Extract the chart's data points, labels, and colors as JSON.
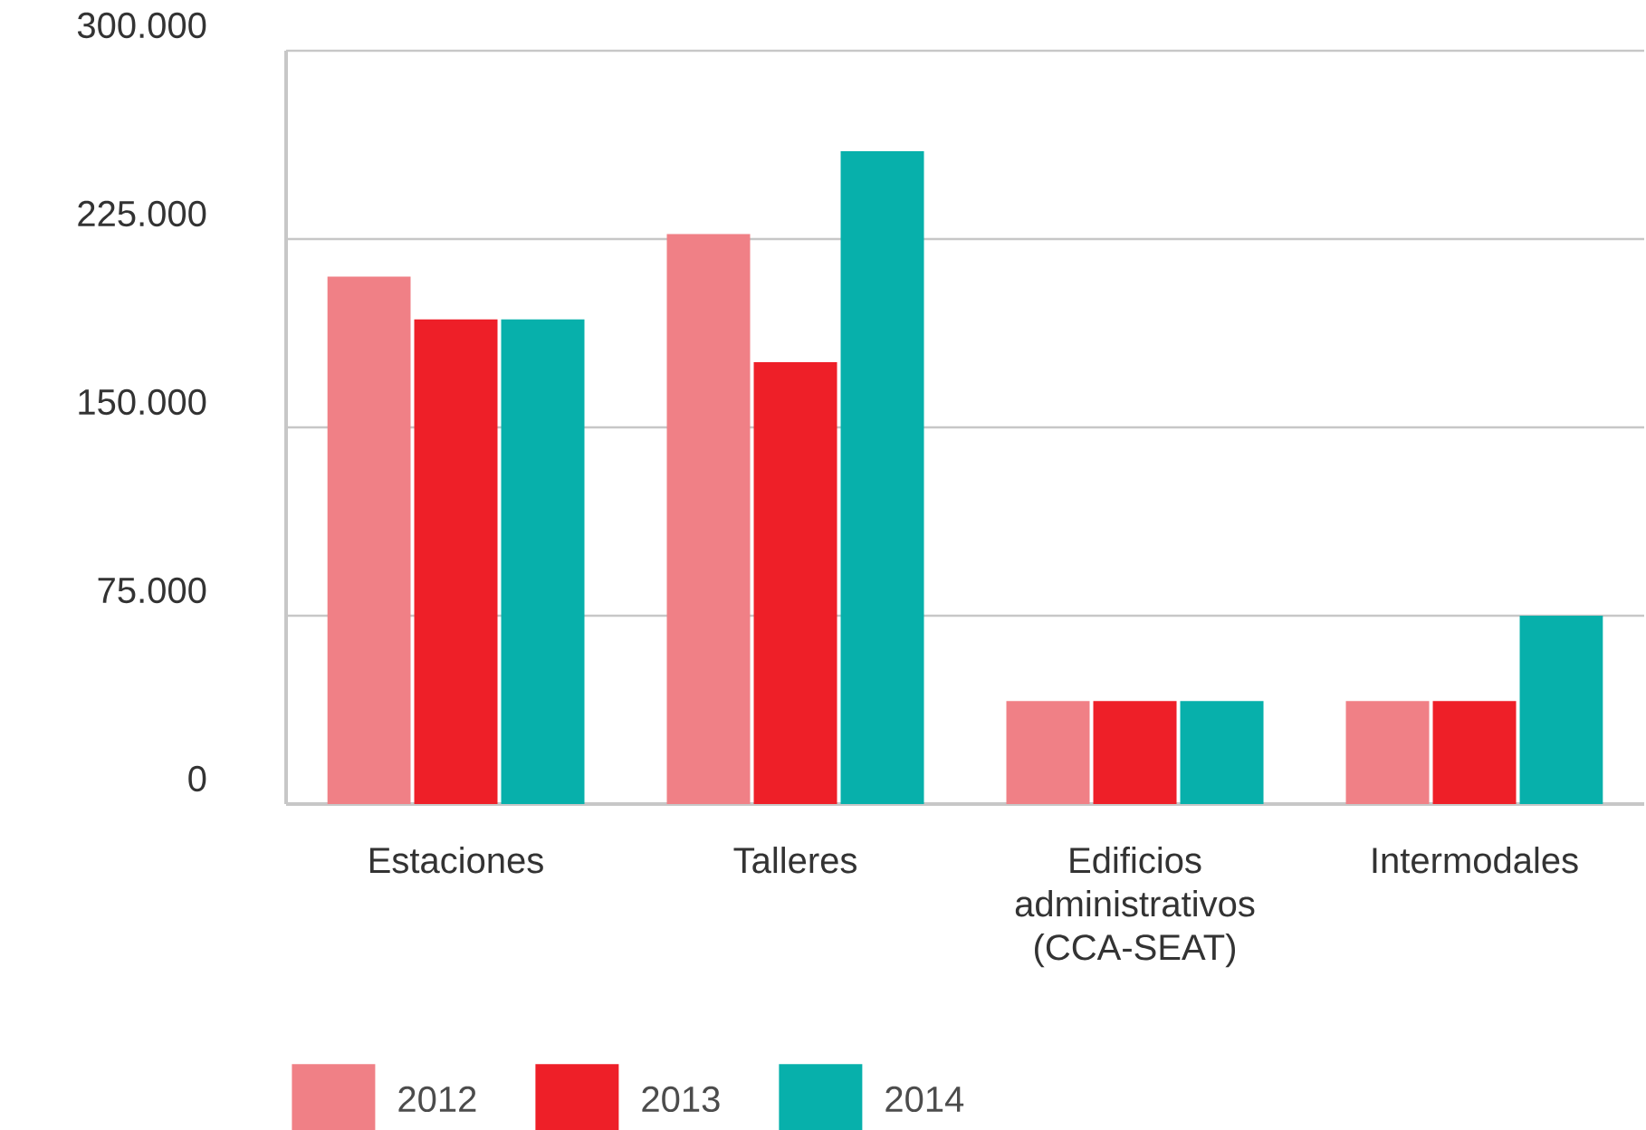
{
  "chart_data": {
    "type": "bar",
    "categories": [
      "Estaciones",
      "Talleres",
      "Edificios administrativos (CCA-SEAT)",
      "Intermodales"
    ],
    "series": [
      {
        "name": "2012",
        "color": "#f08086",
        "values": [
          210000,
          227000,
          41000,
          41000
        ]
      },
      {
        "name": "2013",
        "color": "#ee1f28",
        "values": [
          193000,
          176000,
          41000,
          41000
        ]
      },
      {
        "name": "2014",
        "color": "#07b0ab",
        "values": [
          193000,
          260000,
          41000,
          75000
        ]
      }
    ],
    "ylim": [
      0,
      300000
    ],
    "yticks": [
      {
        "value": 0,
        "label": "0"
      },
      {
        "value": 75000,
        "label": "75.000"
      },
      {
        "value": 150000,
        "label": "150.000"
      },
      {
        "value": 225000,
        "label": "225.000"
      },
      {
        "value": 300000,
        "label": "300.000"
      }
    ],
    "grid": "y",
    "legend": "bottom"
  }
}
